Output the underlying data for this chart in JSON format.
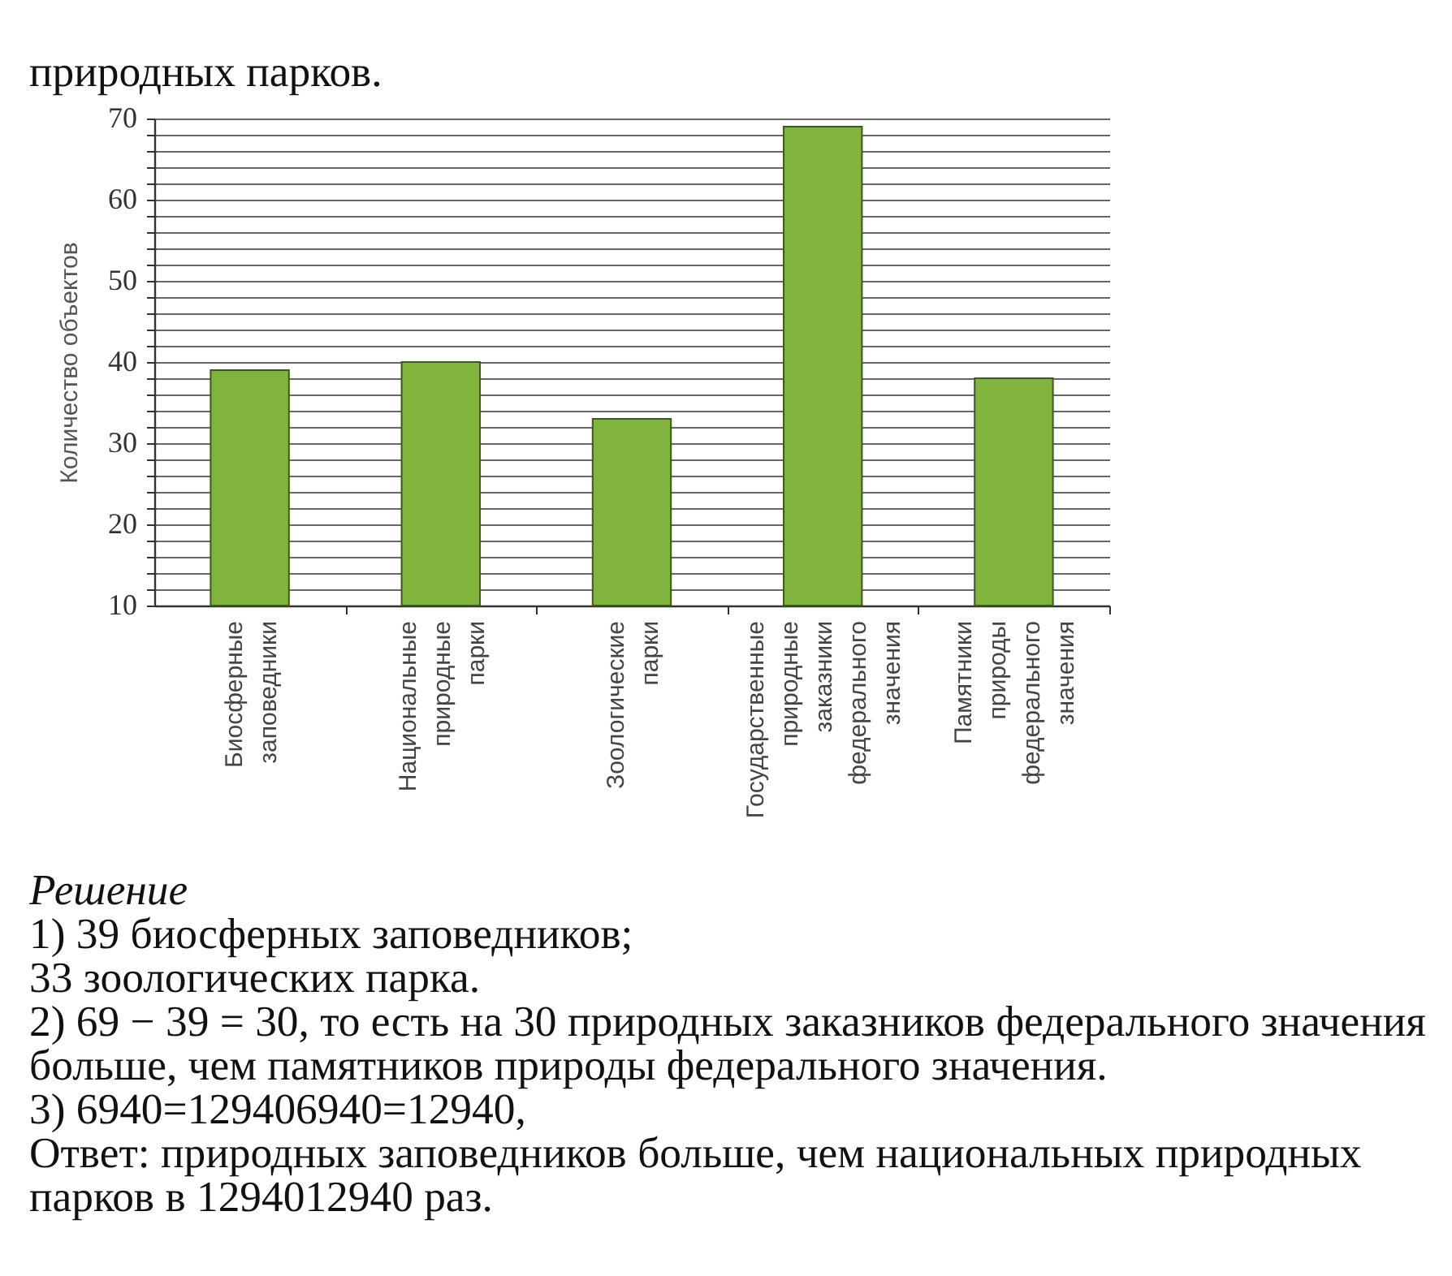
{
  "chart_data": {
    "type": "bar",
    "ylabel": "Количество объектов",
    "categories": [
      "Биосферные заповедники",
      "Национальные природные парки",
      "Зоологические парки",
      "Государственные природные заказники федерального значения",
      "Памятники природы федерального значения"
    ],
    "values": [
      39,
      40,
      33,
      69,
      38
    ],
    "color": "#80b43c",
    "ylim": [
      10,
      70
    ],
    "yticks": [
      10,
      {
        "value": 12,
        "label": null
      },
      {
        "value": 14,
        "label": null
      },
      {
        "value": 16,
        "label": null
      },
      {
        "value": 18,
        "label": null
      },
      20,
      {
        "value": 22,
        "label": null
      },
      {
        "value": 24,
        "label": null
      },
      {
        "value": 26,
        "label": null
      },
      {
        "value": 28,
        "label": null
      },
      30,
      {
        "value": 32,
        "label": null
      },
      {
        "value": 34,
        "label": null
      },
      {
        "value": 36,
        "label": null
      },
      {
        "value": 38,
        "label": null
      },
      40,
      {
        "value": 42,
        "label": null
      },
      {
        "value": 44,
        "label": null
      },
      {
        "value": 46,
        "label": null
      },
      {
        "value": 48,
        "label": null
      },
      50,
      {
        "value": 52,
        "label": null
      },
      {
        "value": 54,
        "label": null
      },
      {
        "value": 56,
        "label": null
      },
      {
        "value": 58,
        "label": null
      },
      60,
      {
        "value": 62,
        "label": null
      },
      {
        "value": 64,
        "label": null
      },
      {
        "value": 66,
        "label": null
      },
      {
        "value": 68,
        "label": null
      },
      70
    ],
    "grid": true,
    "annotations": [
      "природных парков.",
      "Решение",
      "1) 39 биосферных заповедников;",
      "33 зоологических парка.",
      "2) 69 − 39 = 30, то есть на 30 природных заказников федерального значения",
      "больше, чем памятников природы федерального значения.",
      "3) 6940=129406940=12940,",
      "Ответ: природных заповедников больше, чем национальных природных",
      "парков в 1294012940 раз."
    ]
  }
}
